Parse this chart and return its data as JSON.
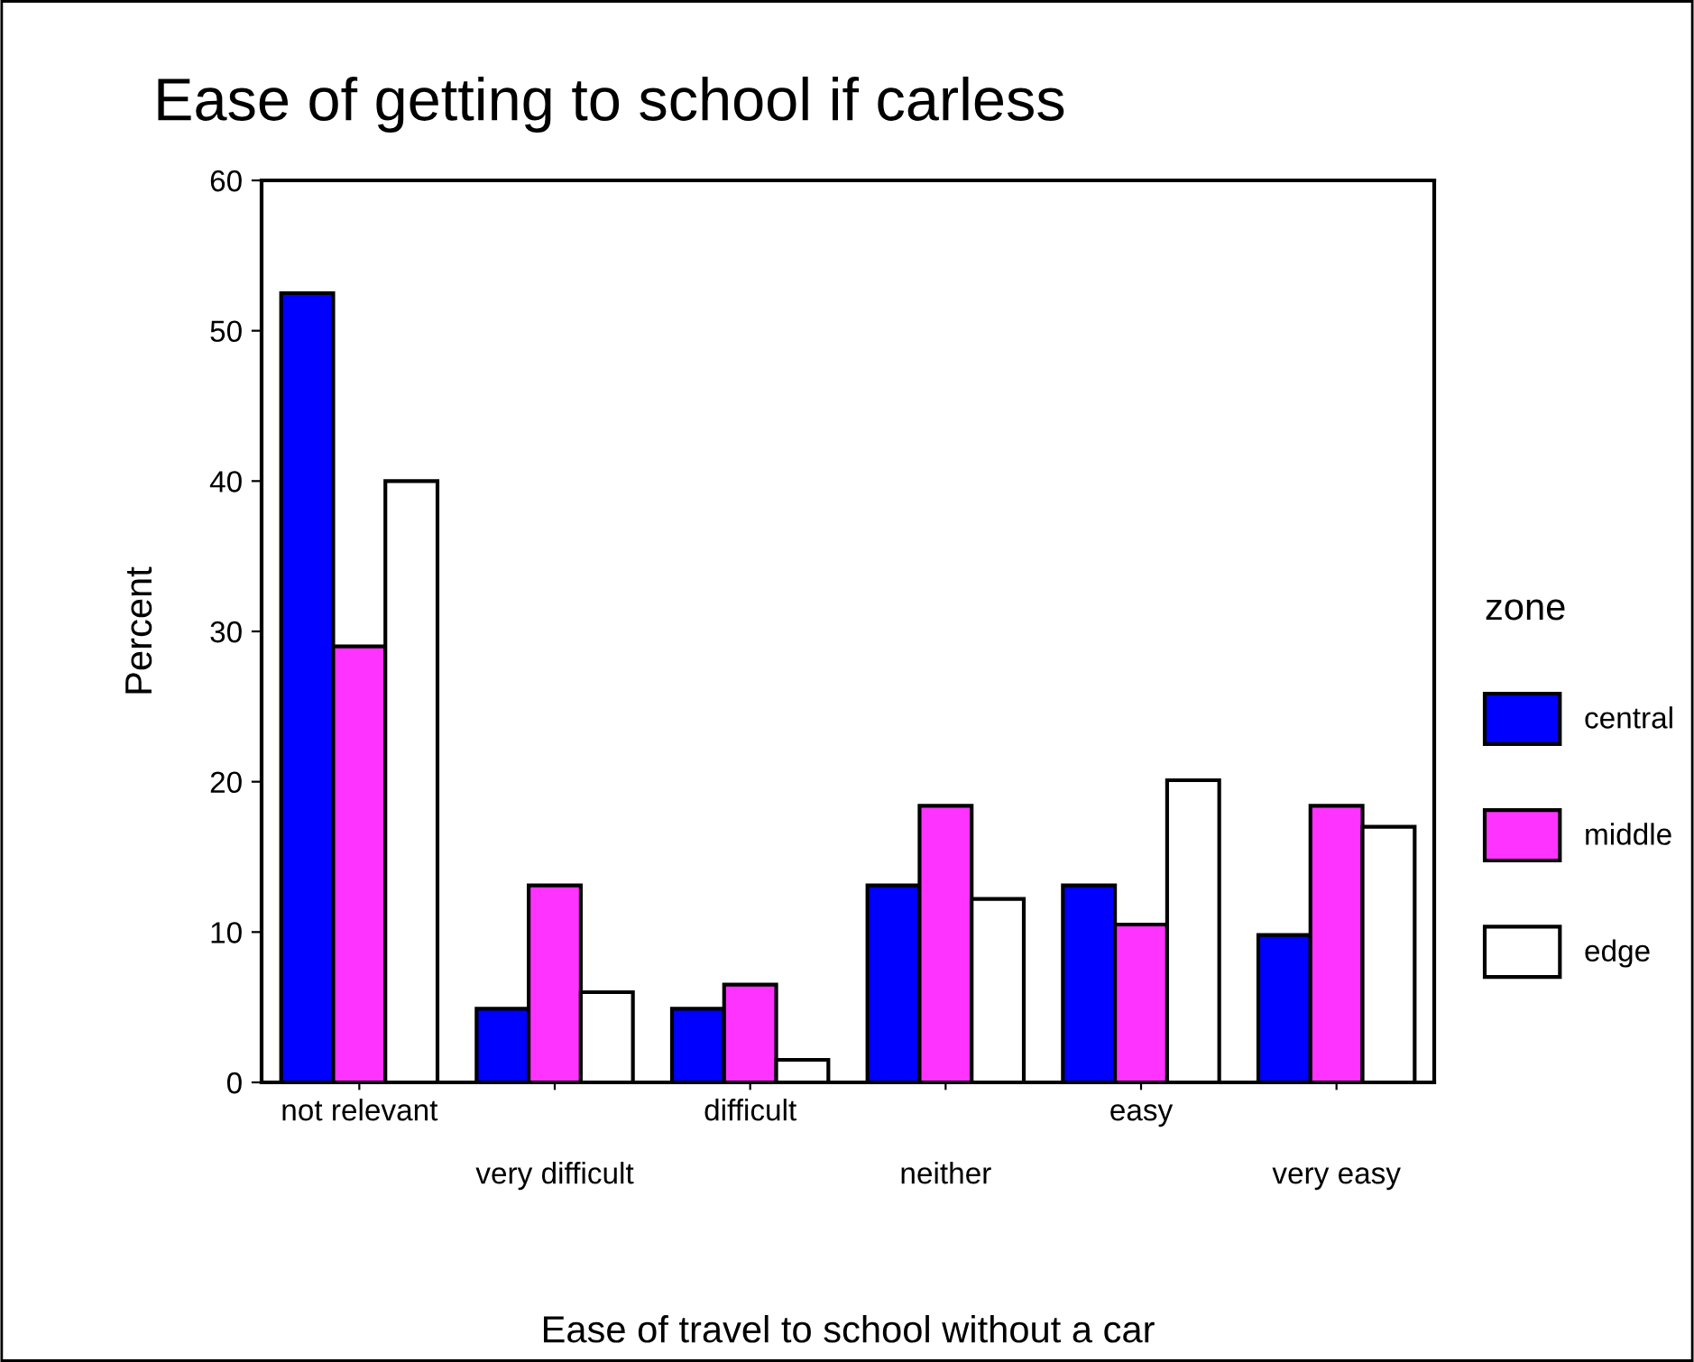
{
  "chart_data": {
    "type": "bar",
    "title": "Ease of getting to school if carless",
    "xlabel": "Ease of travel to school without a car",
    "ylabel": "Percent",
    "legend_title": "zone",
    "categories": [
      "not relevant",
      "very difficult",
      "difficult",
      "neither",
      "easy",
      "very easy"
    ],
    "series": [
      {
        "name": "central",
        "color": "#0000ff",
        "values": [
          52.5,
          4.9,
          4.9,
          13.1,
          13.1,
          9.8
        ]
      },
      {
        "name": "middle",
        "color": "#ff33ff",
        "values": [
          29.0,
          13.1,
          6.5,
          18.4,
          10.5,
          18.4
        ]
      },
      {
        "name": "edge",
        "color": "#ffffff",
        "values": [
          40.0,
          6.0,
          1.5,
          12.2,
          20.1,
          17.0
        ]
      }
    ],
    "ylim": [
      0,
      60
    ],
    "yticks": [
      0,
      10,
      20,
      30,
      40,
      50,
      60
    ],
    "grid": false,
    "legend": "right"
  }
}
